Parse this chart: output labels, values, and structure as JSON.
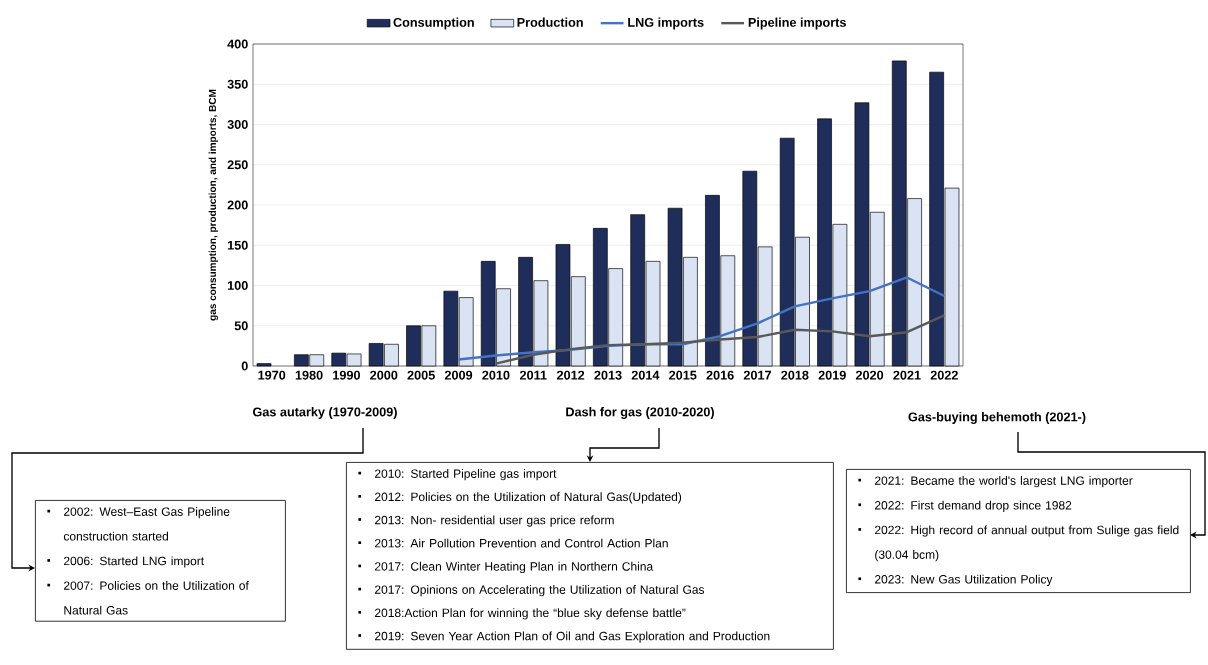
{
  "chart_data": {
    "type": "bar",
    "categories": [
      "1970",
      "1980",
      "1990",
      "2000",
      "2005",
      "2009",
      "2010",
      "2011",
      "2012",
      "2013",
      "2014",
      "2015",
      "2016",
      "2017",
      "2018",
      "2019",
      "2020",
      "2021",
      "2022"
    ],
    "series": [
      {
        "name": "Consumption",
        "type": "bar",
        "color": "#1f2d5a",
        "values": [
          3,
          14,
          16,
          28,
          50,
          93,
          130,
          135,
          151,
          171,
          188,
          196,
          212,
          242,
          283,
          307,
          327,
          379,
          365
        ]
      },
      {
        "name": "Production",
        "type": "bar",
        "color": "#dae3f3",
        "values": [
          null,
          14,
          15,
          27,
          50,
          85,
          96,
          106,
          111,
          121,
          130,
          135,
          137,
          148,
          160,
          176,
          191,
          208,
          221
        ]
      },
      {
        "name": "LNG imports",
        "type": "line",
        "color": "#4472c4",
        "values": [
          null,
          null,
          null,
          null,
          null,
          8,
          13,
          17,
          20,
          25,
          27,
          27,
          37,
          53,
          74,
          84,
          93,
          110,
          87
        ]
      },
      {
        "name": "Pipeline imports",
        "type": "line",
        "color": "#595959",
        "values": [
          null,
          null,
          null,
          null,
          null,
          null,
          3,
          14,
          21,
          26,
          27,
          29,
          33,
          36,
          45,
          43,
          37,
          42,
          63
        ]
      }
    ],
    "ylabel": "gas consumption, production, and imports, BCM",
    "ylim": [
      0,
      400
    ],
    "yticks": [
      0,
      50,
      100,
      150,
      200,
      250,
      300,
      350,
      400
    ],
    "grid": "y",
    "legend": "top",
    "annotations": [
      "Gas autarky (1970-2009)",
      "Dash for gas (2010-2020)",
      "Gas-buying behemoth (2021-)",
      "2002: West–East Gas Pipeline construction started",
      "2006: Started LNG import",
      "2007: Policies on the Utilization of Natural Gas",
      "2010: Started Pipeline gas import",
      "2012: Policies on the Utilization of Natural Gas(Updated)",
      "2013: Non- residential user gas price reform",
      "2013: Air Pollution Prevention and Control Action Plan",
      "2017: Clean Winter Heating Plan in Northern China",
      "2017: Opinions on Accelerating the Utilization of Natural Gas",
      "2018:Action Plan for winning the “blue sky defense battle”",
      "2019: Seven Year Action Plan of Oil and Gas Exploration and Production",
      "2021:  Became the world's largest LNG importer",
      "2022: First demand drop since 1982",
      "2022:  High record of annual output from Sulige gas field (30.04 bcm)",
      "2023: New Gas Utilization Policy"
    ]
  }
}
